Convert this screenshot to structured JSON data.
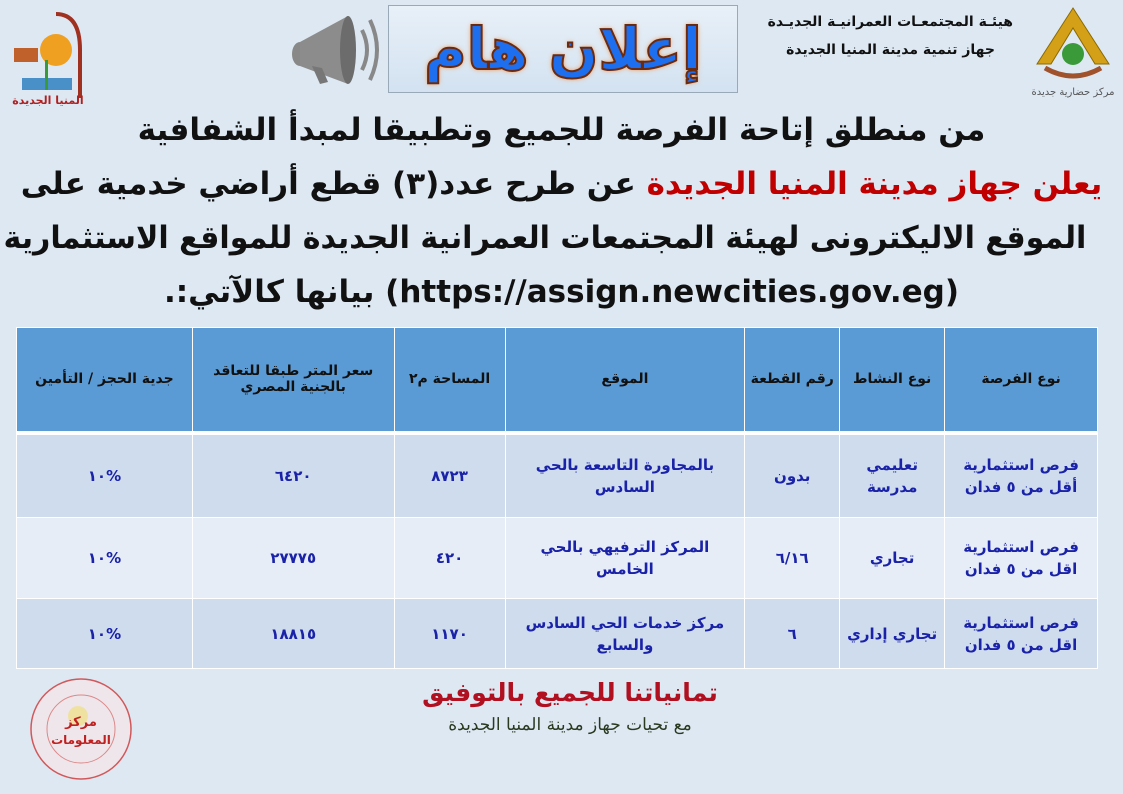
{
  "header": {
    "org_line1": "هيئـة المجتمعـات العمرانيـة الجديـدة",
    "org_line2": "جهاز تنمية مدينة المنيا الجديدة",
    "right_logo_text": "مركز حضارية جديدة",
    "left_logo_text": "المنيا الجديدة",
    "banner": "إعلان هام",
    "megaphone_icon": "megaphone-icon"
  },
  "announcement": {
    "line1": "من منطلق إتاحة الفرصة للجميع وتطبيقا لمبدأ الشفافية",
    "line2_red": "يعلن جهاز مدينة المنيا الجديدة",
    "line2_rest": " عن طرح عدد(٣) قطع أراضي خدمية على",
    "line3": "الموقع الاليكترونى لهيئة المجتمعات العمرانية الجديدة للمواقع الاستثمارية",
    "line4": "(https://assign.newcities.gov.eg) بيانها كالآتي:."
  },
  "table": {
    "columns": [
      "نوع الفرصة",
      "نوع النشاط",
      "رقم القطعة",
      "الموقع",
      "المساحة م٢",
      "سعر المتر طبقا للتعاقد بالجنية المصري",
      "جدية الحجز / التأمين"
    ],
    "rows": [
      [
        "فرص استثمارية أقل من ٥ فدان",
        "تعليمي مدرسة",
        "بدون",
        "بالمجاورة التاسعة بالحي السادس",
        "٨٧٢٣",
        "٦٤٢٠",
        "%١٠"
      ],
      [
        "فرص استثمارية اقل من ٥ فدان",
        "تجاري",
        "٦/١٦",
        "المركز الترفيهي بالحي الخامس",
        "٤٢٠",
        "٢٧٧٧٥",
        "%١٠"
      ],
      [
        "فرص استثمارية اقل من ٥ فدان",
        "تجاري إداري",
        "٦",
        "مركز خدمات الحي السادس والسابع",
        "١١٧٠",
        "١٨٨١٥",
        "%١٠"
      ]
    ]
  },
  "footer": {
    "wish": "تمانياتنا للجميع بالتوفيق",
    "greeting": "مع تحيات جهاز مدينة المنيا الجديدة",
    "stamp_text": "هيئة المجتمعات العمرانية الجديدة - مركز المعلومات - جهاز تنمية مدينة المنيا الجديدة"
  },
  "colors": {
    "header_bg": "#5b9bd5",
    "cell_text": "#1a22a8",
    "accent_red": "#c00000",
    "page_bg": "#dde8f3"
  }
}
